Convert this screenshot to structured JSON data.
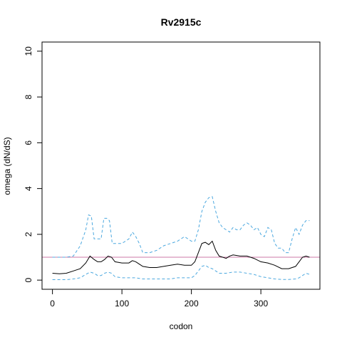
{
  "chart_data": {
    "type": "line",
    "title": "Rv2915c",
    "xlabel": "codon",
    "ylabel": "omega (dN/dS)",
    "xlim": [
      -15,
      385
    ],
    "ylim": [
      -0.4,
      10.4
    ],
    "xticks": [
      0,
      100,
      200,
      300
    ],
    "yticks": [
      0,
      2,
      4,
      6,
      8,
      10
    ],
    "grid": false,
    "reference_line": {
      "y": 1,
      "color": "#cc79a7"
    },
    "series": [
      {
        "style": "dashed",
        "color": "#4ba8df",
        "x": [
          0,
          10,
          20,
          30,
          40,
          48,
          52,
          56,
          60,
          65,
          70,
          74,
          78,
          82,
          86,
          90,
          95,
          100,
          105,
          110,
          115,
          120,
          125,
          130,
          140,
          150,
          160,
          170,
          180,
          190,
          195,
          200,
          205,
          210,
          215,
          220,
          225,
          230,
          235,
          240,
          245,
          250,
          255,
          260,
          265,
          270,
          275,
          280,
          285,
          290,
          295,
          300,
          305,
          310,
          315,
          320,
          325,
          330,
          335,
          340,
          345,
          350,
          355,
          360,
          365,
          370
        ],
        "y": [
          1.0,
          1.0,
          1.0,
          1.05,
          1.5,
          2.2,
          2.85,
          2.8,
          1.8,
          1.8,
          1.8,
          2.7,
          2.7,
          2.6,
          1.6,
          1.6,
          1.6,
          1.6,
          1.7,
          1.8,
          2.1,
          1.9,
          1.6,
          1.2,
          1.2,
          1.3,
          1.5,
          1.6,
          1.7,
          1.9,
          1.8,
          1.7,
          1.7,
          2.2,
          3.0,
          3.4,
          3.6,
          3.65,
          3.0,
          2.5,
          2.3,
          2.2,
          2.1,
          2.3,
          2.2,
          2.2,
          2.4,
          2.5,
          2.4,
          2.2,
          2.3,
          2.0,
          1.9,
          2.3,
          2.2,
          1.6,
          1.4,
          1.4,
          1.2,
          1.2,
          1.8,
          2.3,
          2.0,
          2.4,
          2.6,
          2.6
        ]
      },
      {
        "style": "solid",
        "color": "#000000",
        "x": [
          0,
          10,
          20,
          30,
          40,
          48,
          54,
          60,
          65,
          70,
          75,
          80,
          85,
          90,
          100,
          110,
          115,
          120,
          125,
          130,
          140,
          150,
          160,
          170,
          180,
          190,
          200,
          205,
          210,
          215,
          220,
          225,
          230,
          235,
          240,
          245,
          250,
          255,
          260,
          270,
          280,
          290,
          300,
          310,
          320,
          330,
          340,
          350,
          355,
          360,
          365,
          370
        ],
        "y": [
          0.3,
          0.28,
          0.3,
          0.4,
          0.5,
          0.75,
          1.05,
          0.9,
          0.8,
          0.8,
          0.9,
          1.05,
          1.0,
          0.8,
          0.75,
          0.75,
          0.85,
          0.8,
          0.7,
          0.6,
          0.55,
          0.55,
          0.6,
          0.65,
          0.7,
          0.65,
          0.65,
          0.8,
          1.2,
          1.6,
          1.65,
          1.55,
          1.7,
          1.3,
          1.05,
          1.0,
          0.95,
          1.05,
          1.1,
          1.05,
          1.05,
          0.95,
          0.8,
          0.75,
          0.65,
          0.5,
          0.5,
          0.6,
          0.8,
          1.0,
          1.05,
          1.0
        ]
      },
      {
        "style": "dashed",
        "color": "#4ba8df",
        "x": [
          0,
          10,
          20,
          30,
          40,
          48,
          54,
          60,
          65,
          70,
          75,
          80,
          85,
          90,
          100,
          110,
          120,
          130,
          140,
          150,
          160,
          170,
          180,
          190,
          200,
          205,
          210,
          215,
          220,
          225,
          230,
          235,
          240,
          250,
          260,
          270,
          280,
          290,
          300,
          310,
          320,
          330,
          340,
          350,
          355,
          360,
          365,
          370
        ],
        "y": [
          0.02,
          0.02,
          0.02,
          0.05,
          0.1,
          0.25,
          0.35,
          0.3,
          0.2,
          0.2,
          0.3,
          0.35,
          0.3,
          0.15,
          0.1,
          0.1,
          0.1,
          0.05,
          0.05,
          0.05,
          0.05,
          0.05,
          0.1,
          0.1,
          0.1,
          0.2,
          0.4,
          0.6,
          0.65,
          0.55,
          0.5,
          0.4,
          0.3,
          0.3,
          0.35,
          0.35,
          0.3,
          0.25,
          0.15,
          0.1,
          0.05,
          0.03,
          0.03,
          0.05,
          0.1,
          0.2,
          0.3,
          0.25
        ]
      }
    ]
  }
}
